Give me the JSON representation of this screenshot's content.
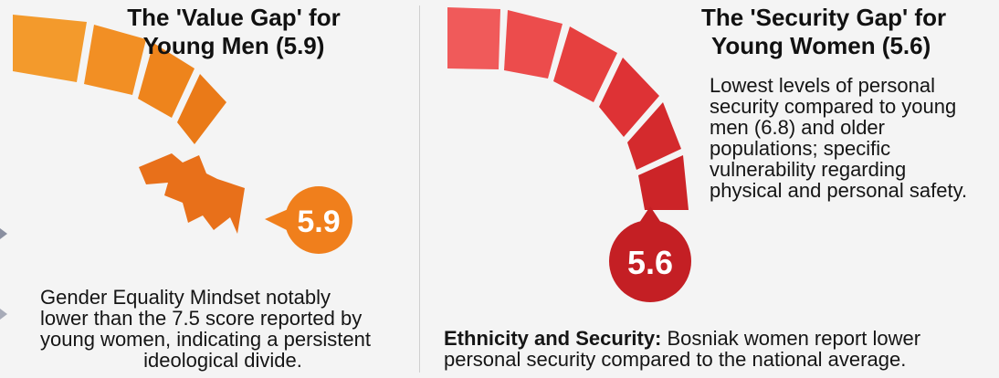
{
  "left_panel": {
    "title_line1": "The 'Value Gap' for",
    "title_line2": "Young Men (5.9)",
    "score": "5.9",
    "description_lines": [
      "Gender Equality Mindset notably",
      "lower than the 7.5 score reported by",
      "young women, indicating a persistent",
      "ideological divide."
    ],
    "accent_color": "#f0861e"
  },
  "right_panel": {
    "title_line1": "The 'Security Gap' for",
    "title_line2": "Young Women (5.6)",
    "score": "5.6",
    "description_lines": [
      "Lowest levels of personal",
      "security compared to young",
      "men (6.8) and older",
      "populations; specific",
      "vulnerability regarding",
      "physical and personal safety."
    ],
    "footnote_bold": "Ethnicity and Security:",
    "footnote_line1_rest": " Bosniak women report lower",
    "footnote_line2": "personal security compared to the national average.",
    "accent_color": "#d8282c"
  }
}
